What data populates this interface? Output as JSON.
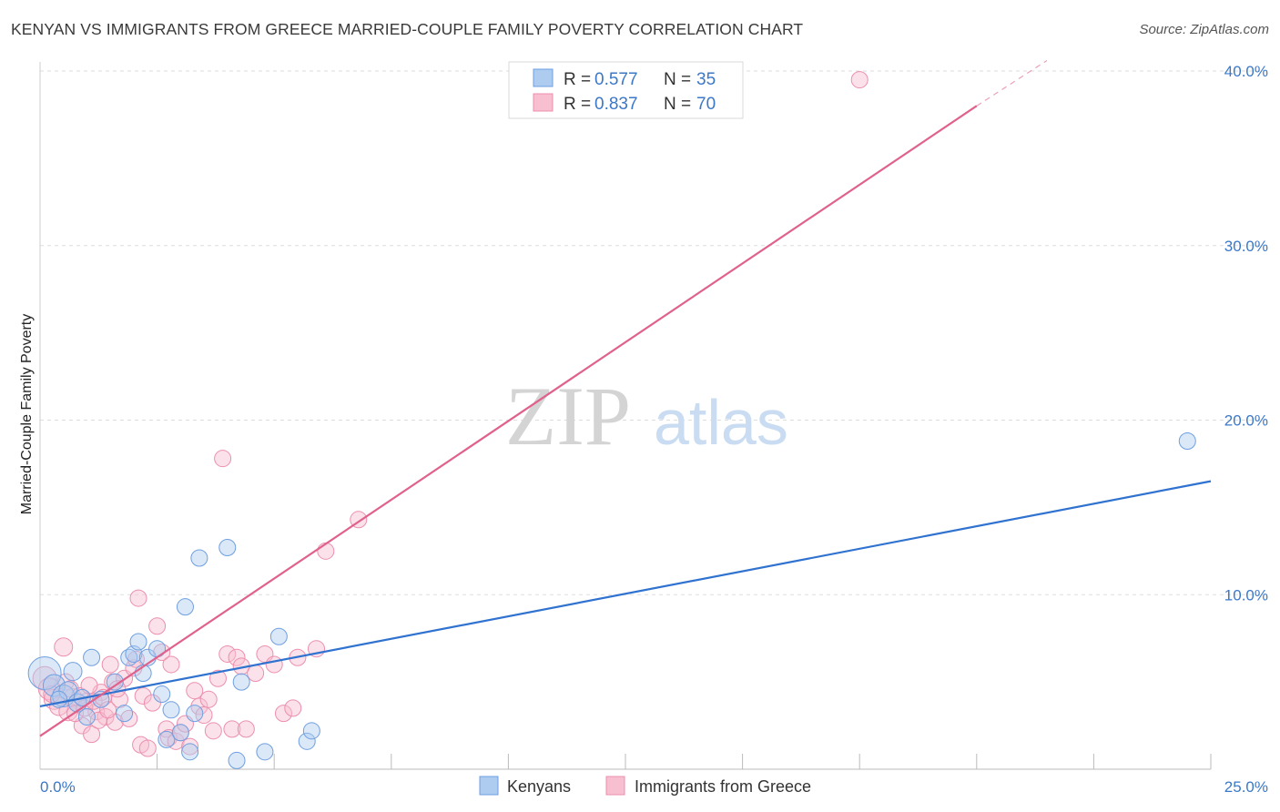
{
  "title": "KENYAN VS IMMIGRANTS FROM GREECE MARRIED-COUPLE FAMILY POVERTY CORRELATION CHART",
  "source": "Source: ZipAtlas.com",
  "watermark": {
    "zip": "ZIP",
    "atlas": "atlas"
  },
  "colors": {
    "blue_fill": "#aecbf0",
    "blue_stroke": "#6f9fe0",
    "blue_line": "#2f72cf",
    "pink_fill": "#f7bfd0",
    "pink_stroke": "#ec8fae",
    "pink_line": "#e0628c",
    "tick_color": "#3b78c8",
    "grid": "#dddddd"
  },
  "legend": {
    "r_label": "R =",
    "n_label": "N =",
    "entries": [
      {
        "series": "Kenyans",
        "r": "0.577",
        "n": "35"
      },
      {
        "series": "Immigrants from Greece",
        "r": "0.837",
        "n": "70"
      }
    ]
  },
  "chart_data": {
    "type": "scatter",
    "title": "KENYAN VS IMMIGRANTS FROM GREECE MARRIED-COUPLE FAMILY POVERTY CORRELATION CHART",
    "xlabel": "",
    "ylabel": "Married-Couple Family Poverty",
    "xlim": [
      0,
      25
    ],
    "ylim": [
      0,
      40
    ],
    "x_tick_labels": [
      {
        "value": 0,
        "label": "0.0%"
      },
      {
        "value": 25,
        "label": "25.0%"
      }
    ],
    "y_tick_labels": [
      {
        "value": 10,
        "label": "10.0%"
      },
      {
        "value": 20,
        "label": "20.0%"
      },
      {
        "value": 30,
        "label": "30.0%"
      },
      {
        "value": 40,
        "label": "40.0%"
      }
    ],
    "x_minor_ticks": [
      2.5,
      5,
      7.5,
      10,
      12.5,
      15,
      17.5,
      20,
      22.5,
      25
    ],
    "series": [
      {
        "name": "Kenyans",
        "color": "blue",
        "trendline": {
          "x": [
            0,
            25
          ],
          "y": [
            3.6,
            16.5
          ]
        },
        "points": [
          [
            0.1,
            5.5,
            18
          ],
          [
            0.3,
            4.8,
            12
          ],
          [
            0.5,
            4.2,
            12
          ],
          [
            0.6,
            4.5,
            10
          ],
          [
            0.7,
            5.6,
            10
          ],
          [
            0.8,
            3.8,
            10
          ],
          [
            0.9,
            4.1,
            9
          ],
          [
            1.0,
            3.0,
            9
          ],
          [
            1.1,
            6.4,
            9
          ],
          [
            1.3,
            4.0,
            9
          ],
          [
            1.6,
            5.0,
            9
          ],
          [
            1.8,
            3.2,
            9
          ],
          [
            1.9,
            6.4,
            9
          ],
          [
            2.0,
            6.6,
            9
          ],
          [
            2.1,
            7.3,
            9
          ],
          [
            2.2,
            5.5,
            9
          ],
          [
            2.3,
            6.4,
            9
          ],
          [
            2.5,
            6.9,
            9
          ],
          [
            2.6,
            4.3,
            9
          ],
          [
            2.7,
            1.7,
            9
          ],
          [
            2.8,
            3.4,
            9
          ],
          [
            3.0,
            2.1,
            9
          ],
          [
            3.1,
            9.3,
            9
          ],
          [
            3.2,
            1.0,
            9
          ],
          [
            3.3,
            3.2,
            9
          ],
          [
            3.4,
            12.1,
            9
          ],
          [
            4.0,
            12.7,
            9
          ],
          [
            4.2,
            0.5,
            9
          ],
          [
            4.3,
            5.0,
            9
          ],
          [
            4.8,
            1.0,
            9
          ],
          [
            5.1,
            7.6,
            9
          ],
          [
            5.7,
            1.6,
            9
          ],
          [
            5.8,
            2.2,
            9
          ],
          [
            24.5,
            18.8,
            9
          ],
          [
            0.4,
            4.0,
            9
          ]
        ]
      },
      {
        "name": "Immigrants from Greece",
        "color": "pink",
        "trendline": {
          "x": [
            0,
            20
          ],
          "y": [
            1.9,
            38.0
          ]
        },
        "trendline_dashed": {
          "x": [
            20,
            21.5
          ],
          "y": [
            38.0,
            40.6
          ]
        },
        "points": [
          [
            0.1,
            5.2,
            13
          ],
          [
            0.2,
            4.6,
            12
          ],
          [
            0.3,
            4.0,
            11
          ],
          [
            0.4,
            3.6,
            10
          ],
          [
            0.5,
            7.0,
            10
          ],
          [
            0.6,
            3.3,
            10
          ],
          [
            0.7,
            4.1,
            10
          ],
          [
            0.8,
            3.8,
            10
          ],
          [
            0.9,
            2.5,
            9
          ],
          [
            1.0,
            3.9,
            9
          ],
          [
            1.1,
            2.0,
            9
          ],
          [
            1.2,
            3.3,
            9
          ],
          [
            1.3,
            4.4,
            9
          ],
          [
            1.4,
            3.0,
            9
          ],
          [
            1.5,
            6.0,
            9
          ],
          [
            1.55,
            5.0,
            9
          ],
          [
            1.6,
            2.7,
            9
          ],
          [
            1.7,
            4.0,
            9
          ],
          [
            1.8,
            5.2,
            9
          ],
          [
            1.9,
            2.9,
            9
          ],
          [
            2.0,
            5.8,
            9
          ],
          [
            2.05,
            6.3,
            9
          ],
          [
            2.1,
            9.8,
            9
          ],
          [
            2.15,
            1.4,
            9
          ],
          [
            2.2,
            4.2,
            9
          ],
          [
            2.3,
            1.2,
            9
          ],
          [
            2.4,
            3.8,
            9
          ],
          [
            2.5,
            8.2,
            9
          ],
          [
            2.6,
            6.7,
            9
          ],
          [
            2.7,
            2.3,
            9
          ],
          [
            2.75,
            1.8,
            9
          ],
          [
            2.8,
            6.0,
            9
          ],
          [
            2.9,
            1.6,
            9
          ],
          [
            3.0,
            2.1,
            9
          ],
          [
            3.1,
            2.6,
            9
          ],
          [
            3.2,
            1.3,
            9
          ],
          [
            3.3,
            4.5,
            9
          ],
          [
            3.4,
            3.6,
            9
          ],
          [
            3.5,
            3.1,
            9
          ],
          [
            3.6,
            4.0,
            9
          ],
          [
            3.7,
            2.2,
            9
          ],
          [
            3.8,
            5.2,
            9
          ],
          [
            3.9,
            17.8,
            9
          ],
          [
            4.0,
            6.6,
            9
          ],
          [
            4.1,
            2.3,
            9
          ],
          [
            4.2,
            6.4,
            9
          ],
          [
            4.3,
            5.9,
            9
          ],
          [
            4.4,
            2.3,
            9
          ],
          [
            4.6,
            5.5,
            9
          ],
          [
            4.8,
            6.6,
            9
          ],
          [
            5.0,
            6.0,
            9
          ],
          [
            5.2,
            3.2,
            9
          ],
          [
            5.4,
            3.5,
            9
          ],
          [
            5.5,
            6.4,
            9
          ],
          [
            5.9,
            6.9,
            9
          ],
          [
            6.1,
            12.5,
            9
          ],
          [
            6.8,
            14.3,
            9
          ],
          [
            17.5,
            39.5,
            9
          ],
          [
            0.25,
            4.3,
            9
          ],
          [
            0.55,
            5.0,
            9
          ],
          [
            0.65,
            4.6,
            9
          ],
          [
            0.75,
            3.2,
            9
          ],
          [
            0.85,
            4.2,
            9
          ],
          [
            0.95,
            3.5,
            9
          ],
          [
            1.05,
            4.8,
            9
          ],
          [
            1.15,
            3.9,
            9
          ],
          [
            1.25,
            2.8,
            9
          ],
          [
            1.35,
            4.1,
            9
          ],
          [
            1.45,
            3.4,
            9
          ],
          [
            1.65,
            4.6,
            9
          ]
        ]
      }
    ]
  }
}
